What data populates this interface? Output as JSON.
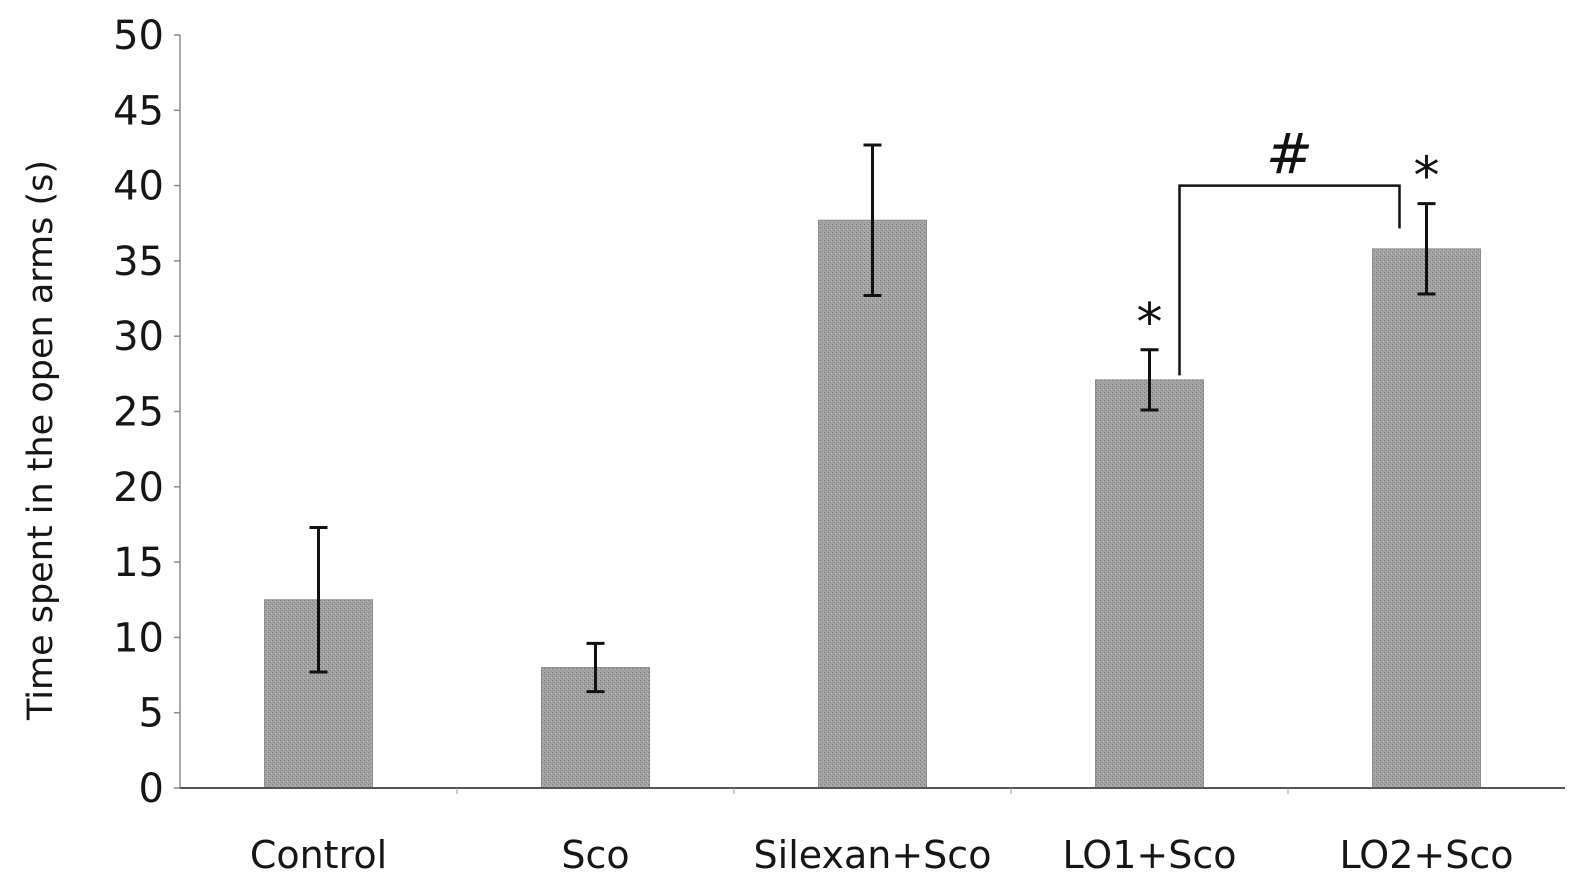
{
  "chart_data": {
    "type": "bar",
    "title": "",
    "xlabel": "",
    "ylabel": "Time spent in the open arms (s)",
    "ylim": [
      0,
      50
    ],
    "yticks": [
      0,
      5,
      10,
      15,
      20,
      25,
      30,
      35,
      40,
      45,
      50
    ],
    "yticks_labels": [
      "0",
      "5",
      "10",
      "15",
      "20",
      "25",
      "30",
      "35",
      "40",
      "45",
      "50"
    ],
    "grid": false,
    "legend": "none",
    "categories": [
      "Control",
      "Sco",
      "Silexan+Sco",
      "LO1+Sco",
      "LO2+Sco"
    ],
    "values": [
      12.5,
      8,
      37.7,
      27.1,
      35.8
    ],
    "error": [
      4.8,
      1.6,
      5,
      2,
      3
    ],
    "annotations": [
      {
        "text": "*",
        "category": "LO1+Sco"
      },
      {
        "text": "*",
        "category": "LO2+Sco"
      },
      {
        "text": "#",
        "between": [
          "LO1+Sco",
          "LO2+Sco"
        ]
      }
    ],
    "colors": {
      "bar": "#9a9a9a",
      "axis": "#444444",
      "error": "#111111"
    }
  }
}
